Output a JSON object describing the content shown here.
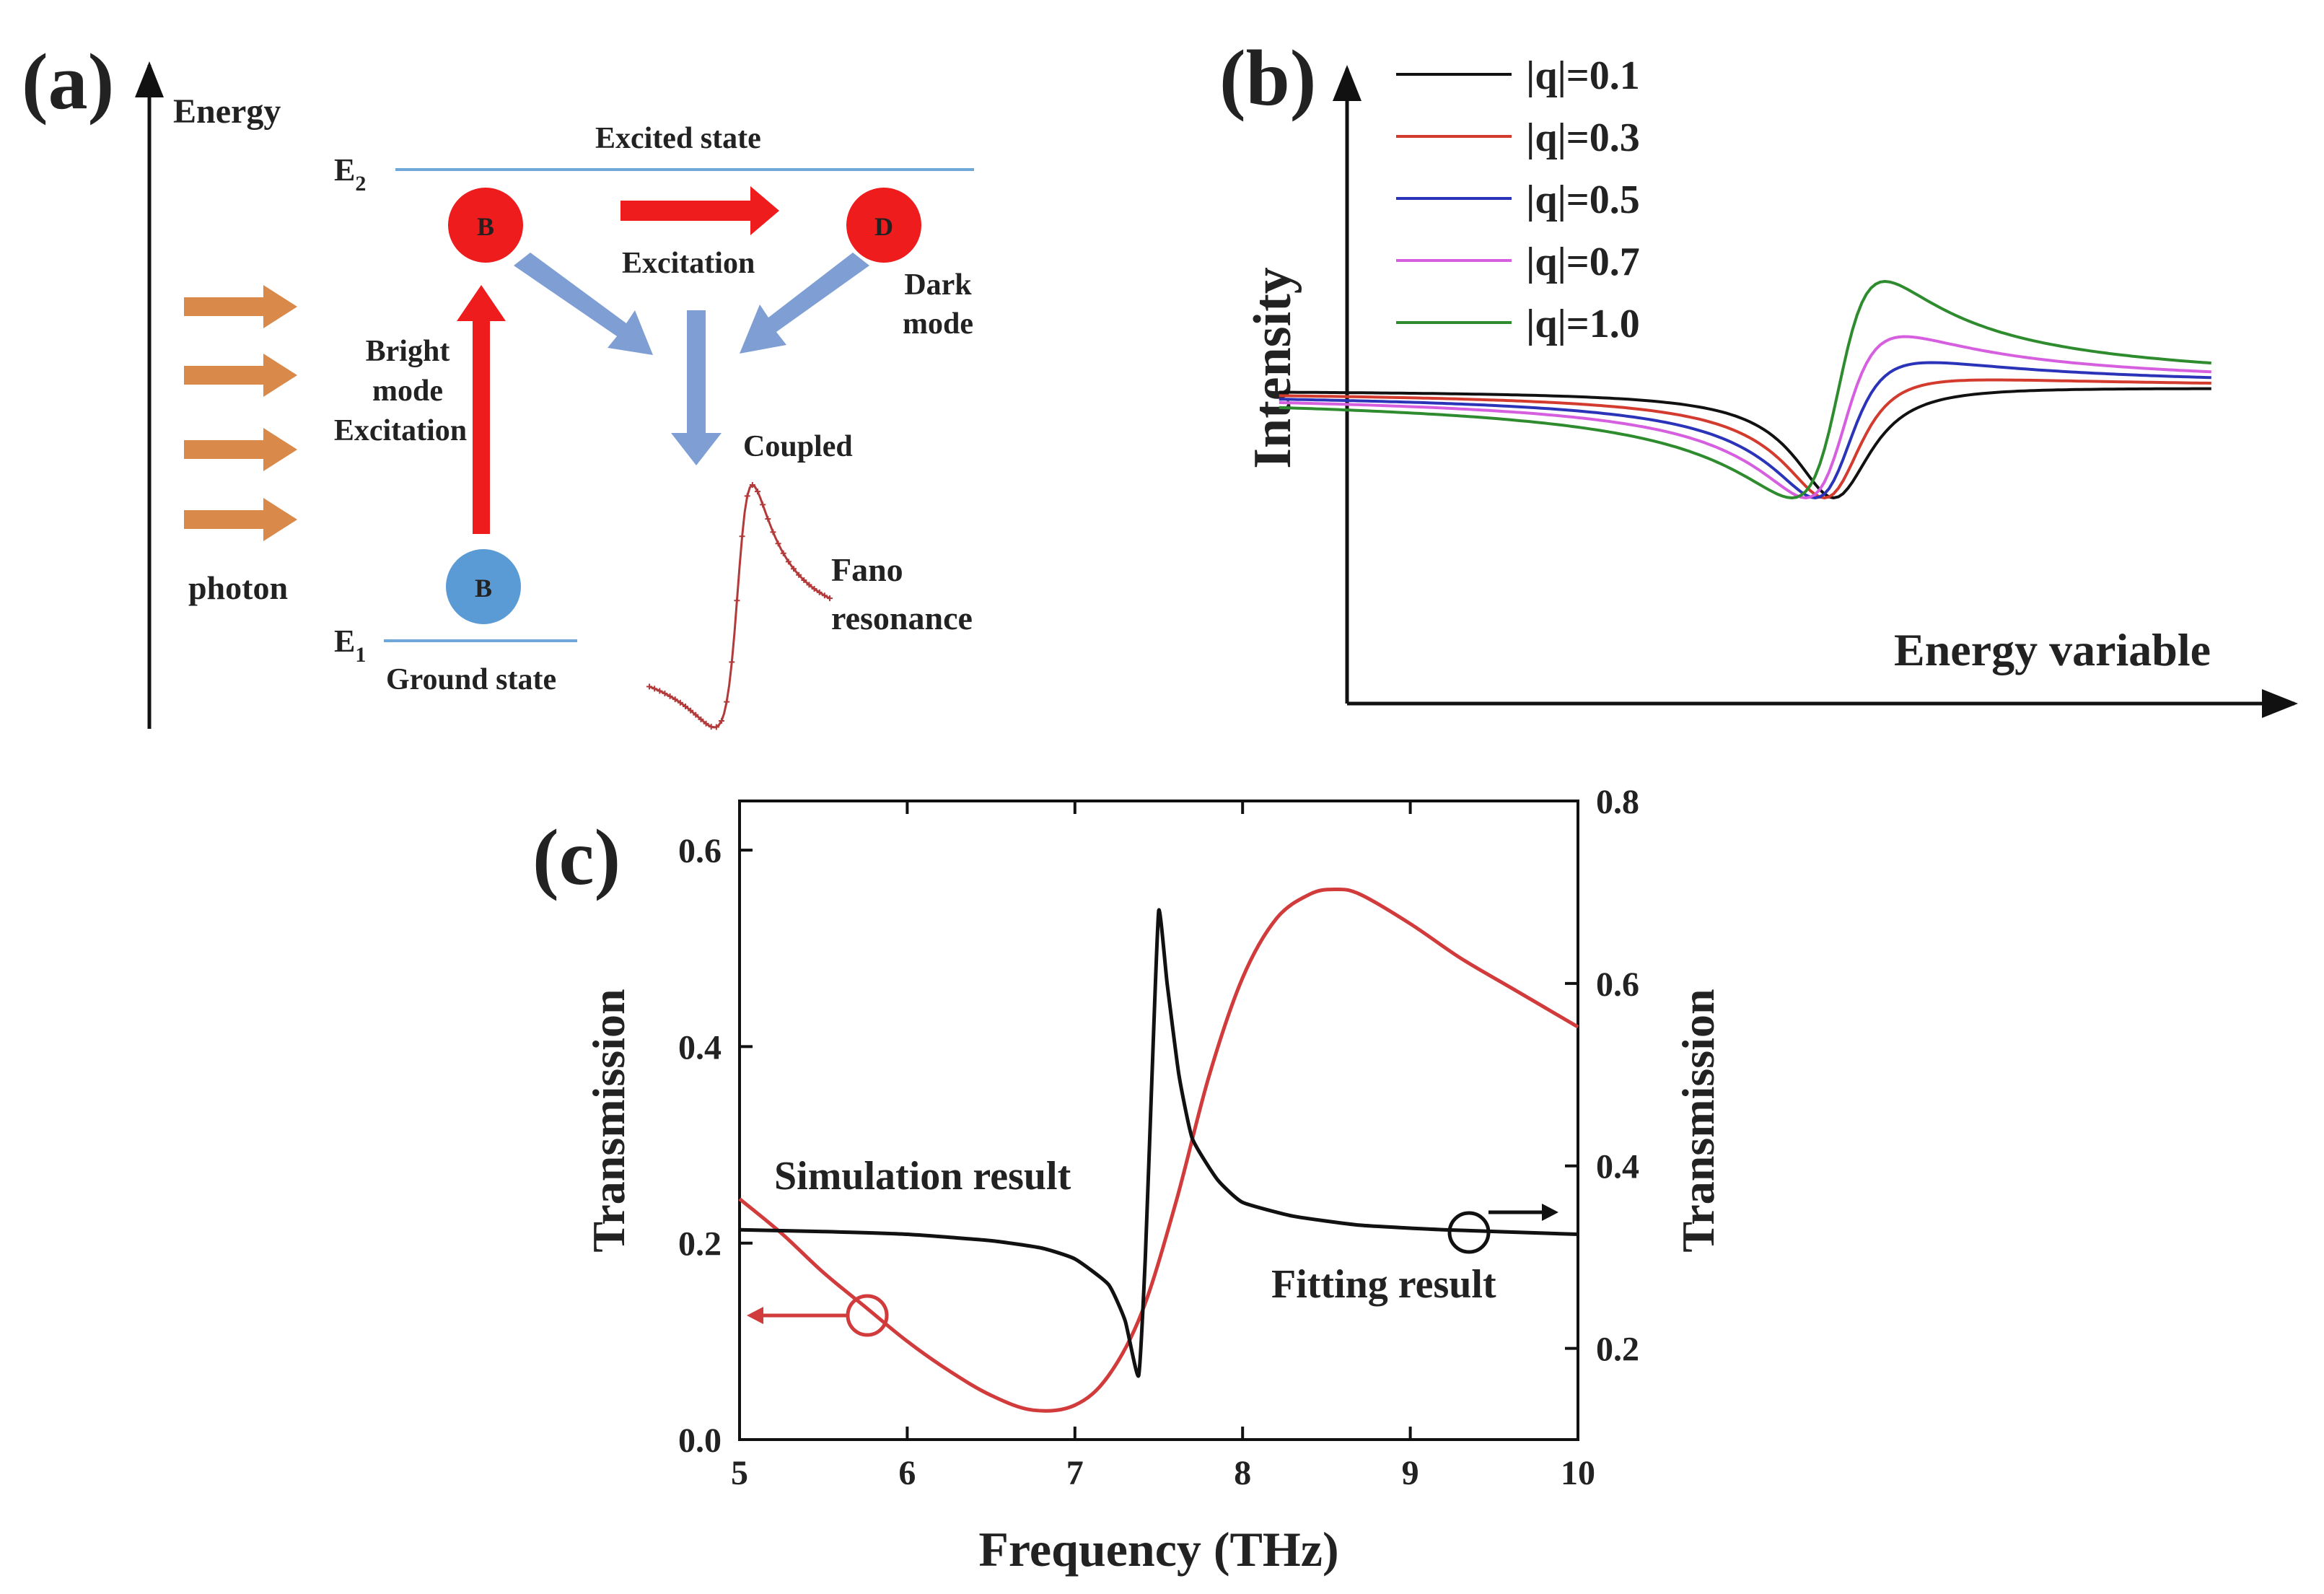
{
  "colors": {
    "text": "#222222",
    "level_line": "#6fa8d8",
    "bright_red": "#ee1c1c",
    "ground_blue": "#5b9bd5",
    "photon_orange": "#d9894a",
    "coupling_arrow": "#7f9fd4",
    "fano_marker": "#b23a3a",
    "sim_red": "#d13b3b",
    "fit_black": "#111111",
    "q_colors": [
      "#111111",
      "#d23b2e",
      "#2b34b8",
      "#d65fe0",
      "#2e8b2e"
    ]
  },
  "panel_a": {
    "label": "(a)",
    "energy_axis_label": "Energy",
    "e2_label": "E",
    "e2_sub": "2",
    "e1_label": "E",
    "e1_sub": "1",
    "excited_state": "Excited state",
    "ground_state": "Ground state",
    "bright_node": "B",
    "dark_node": "D",
    "ground_node": "B",
    "excitation_label": "Excitation",
    "dark_mode_line1": "Dark",
    "dark_mode_line2": "mode",
    "bright_line1": "Bright",
    "bright_line2": "mode",
    "bright_line3": "Excitation",
    "coupled_label": "Coupled",
    "photon_label": "photon",
    "fano_line1": "Fano",
    "fano_line2": "resonance"
  },
  "panel_b": {
    "label": "(b)",
    "ylabel": "Intensity",
    "xlabel": "Energy variable",
    "legend": [
      "|q|=0.1",
      "|q|=0.3",
      "|q|=0.5",
      "|q|=0.7",
      "|q|=1.0"
    ]
  },
  "chart_data": {
    "type": "line",
    "title": "(c)",
    "xlabel": "Frequency (THz)",
    "ylabel_left": "Transmission",
    "ylabel_right": "Transmission",
    "xlim": [
      5,
      10
    ],
    "ylim_left": [
      0.0,
      0.65
    ],
    "ylim_right": [
      0.1,
      0.8
    ],
    "x_ticks": [
      "5",
      "6",
      "7",
      "8",
      "9",
      "10"
    ],
    "y_ticks_left": [
      "0.0",
      "0.2",
      "0.4",
      "0.6"
    ],
    "y_ticks_right": [
      "0.2",
      "0.4",
      "0.6",
      "0.8"
    ],
    "series": [
      {
        "name": "Simulation result",
        "axis": "left",
        "x": [
          5.0,
          5.25,
          5.5,
          5.75,
          6.0,
          6.25,
          6.5,
          6.75,
          7.0,
          7.2,
          7.4,
          7.6,
          7.8,
          8.0,
          8.2,
          8.4,
          8.55,
          8.7,
          9.0,
          9.3,
          9.6,
          10.0
        ],
        "values": [
          0.245,
          0.21,
          0.17,
          0.135,
          0.1,
          0.07,
          0.045,
          0.03,
          0.035,
          0.065,
          0.13,
          0.24,
          0.37,
          0.47,
          0.53,
          0.555,
          0.56,
          0.555,
          0.525,
          0.49,
          0.46,
          0.42
        ]
      },
      {
        "name": "Fitting result",
        "axis": "right",
        "x": [
          5.0,
          5.5,
          6.0,
          6.5,
          6.8,
          7.0,
          7.2,
          7.3,
          7.38,
          7.42,
          7.46,
          7.5,
          7.55,
          7.62,
          7.7,
          7.85,
          8.0,
          8.3,
          8.7,
          9.2,
          10.0
        ],
        "values": [
          0.33,
          0.328,
          0.325,
          0.318,
          0.31,
          0.298,
          0.27,
          0.23,
          0.17,
          0.3,
          0.5,
          0.68,
          0.6,
          0.5,
          0.43,
          0.385,
          0.36,
          0.345,
          0.335,
          0.33,
          0.325
        ]
      }
    ],
    "annotations": [
      "Simulation result",
      "Fitting result"
    ]
  }
}
